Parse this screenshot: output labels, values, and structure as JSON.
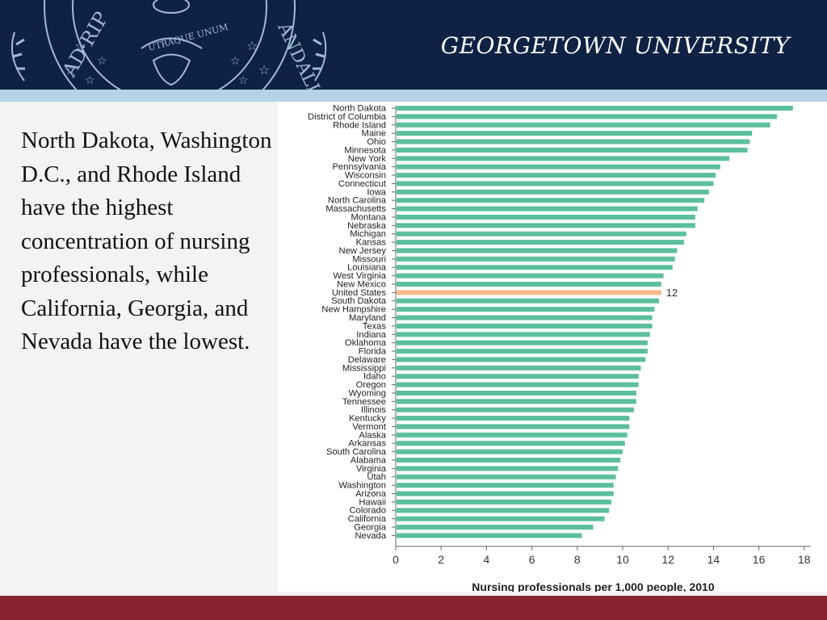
{
  "header": {
    "university": "GEORGETOWN UNIVERSITY",
    "seal_left_text": "AD·RIP",
    "seal_motto": "UTRAQUE UNUM",
    "seal_right_text": "ANDALIA",
    "navy": "#0f2244",
    "band_color": "#b5d3e7"
  },
  "body": {
    "text": "North Dakota, Washington D.C., and Rhode Island have the highest concentration of nursing professionals, while California, Georgia, and Nevada have the lowest."
  },
  "footer": {
    "color": "#8b2231"
  },
  "chart_data": {
    "type": "bar",
    "orientation": "horizontal",
    "xlabel": "Nursing professionals per 1,000 people, 2010",
    "xlim": [
      0,
      18
    ],
    "xticks": [
      0,
      2,
      4,
      6,
      8,
      10,
      12,
      14,
      16,
      18
    ],
    "bar_color": "#5bbf9b",
    "highlight_color": "#f7b98a",
    "highlight_category": "United States",
    "annotation": {
      "category": "United States",
      "text": "12"
    },
    "categories": [
      "North Dakota",
      "District of Columbia",
      "Rhode Island",
      "Maine",
      "Ohio",
      "Minnesota",
      "New York",
      "Pennsylvania",
      "Wisconsin",
      "Connecticut",
      "Iowa",
      "North Carolina",
      "Massachusetts",
      "Montana",
      "Nebraska",
      "Michigan",
      "Kansas",
      "New Jersey",
      "Missouri",
      "Louisiana",
      "West Virginia",
      "New Mexico",
      "United States",
      "South Dakota",
      "New Hampshire",
      "Maryland",
      "Texas",
      "Indiana",
      "Oklahoma",
      "Florida",
      "Delaware",
      "Mississippi",
      "Idaho",
      "Oregon",
      "Wyoming",
      "Tennessee",
      "Illinois",
      "Kentucky",
      "Vermont",
      "Alaska",
      "Arkansas",
      "South Carolina",
      "Alabama",
      "Virginia",
      "Utah",
      "Washington",
      "Arizona",
      "Hawaii",
      "Colorado",
      "California",
      "Georgia",
      "Nevada"
    ],
    "values": [
      17.5,
      16.8,
      16.5,
      15.7,
      15.6,
      15.5,
      14.7,
      14.3,
      14.1,
      14.0,
      13.8,
      13.6,
      13.3,
      13.2,
      13.2,
      12.8,
      12.7,
      12.4,
      12.3,
      12.2,
      11.8,
      11.7,
      11.7,
      11.6,
      11.4,
      11.3,
      11.3,
      11.2,
      11.1,
      11.1,
      11.0,
      10.8,
      10.7,
      10.7,
      10.6,
      10.6,
      10.5,
      10.3,
      10.3,
      10.2,
      10.1,
      10.0,
      9.9,
      9.8,
      9.7,
      9.6,
      9.6,
      9.5,
      9.4,
      9.2,
      8.7,
      8.2
    ]
  }
}
